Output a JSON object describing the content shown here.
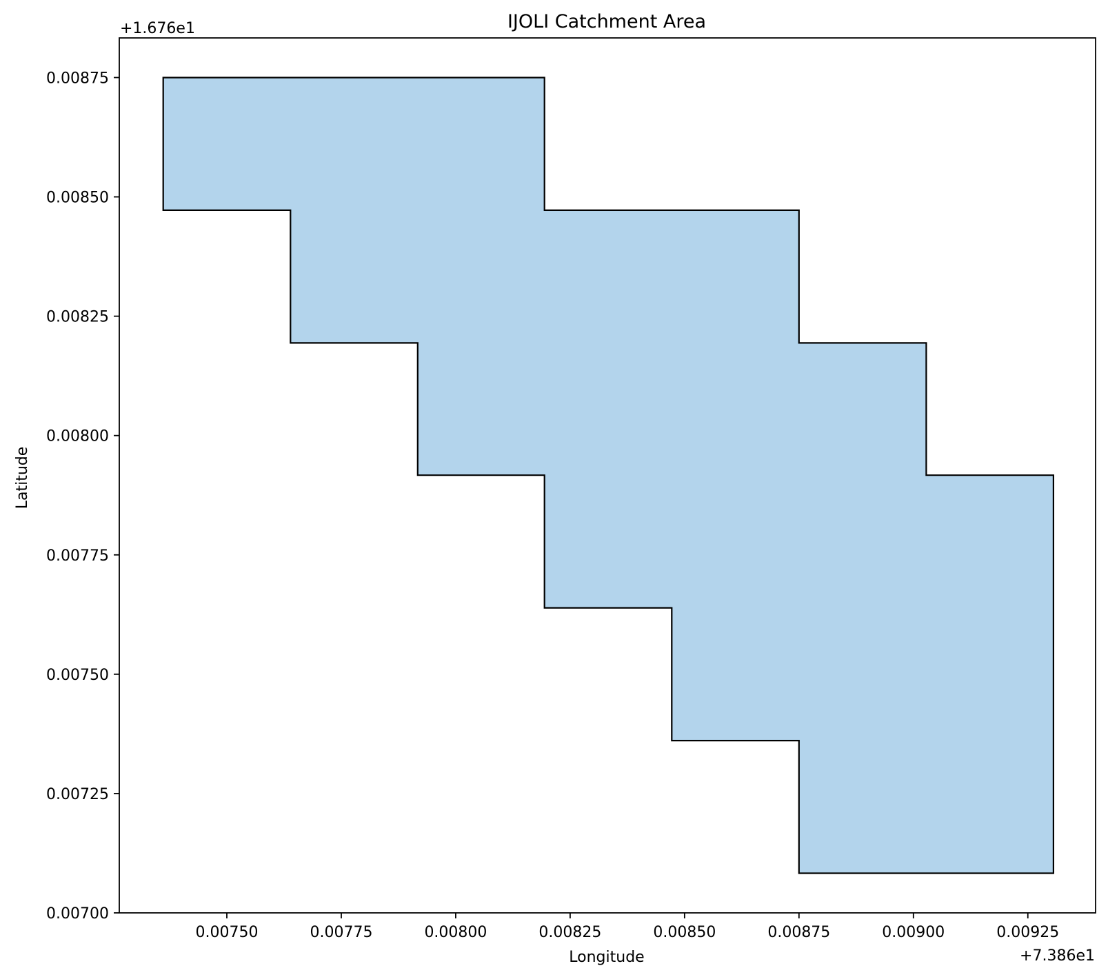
{
  "chart_data": {
    "type": "area",
    "title": "IJOLI Catchment Area",
    "xlabel": "Longitude",
    "ylabel": "Latitude",
    "x_offset_label": "+7.386e1",
    "y_offset_label": "+1.676e1",
    "x_offset": 73.86,
    "y_offset": 16.76,
    "xlim": [
      0.007265,
      0.009398
    ],
    "ylim": [
      0.007,
      0.008833
    ],
    "xticks": [
      {
        "value": 0.0075,
        "label": "0.00750"
      },
      {
        "value": 0.00775,
        "label": "0.00775"
      },
      {
        "value": 0.008,
        "label": "0.00800"
      },
      {
        "value": 0.00825,
        "label": "0.00825"
      },
      {
        "value": 0.0085,
        "label": "0.00850"
      },
      {
        "value": 0.00875,
        "label": "0.00875"
      },
      {
        "value": 0.009,
        "label": "0.00900"
      },
      {
        "value": 0.00925,
        "label": "0.00925"
      }
    ],
    "yticks": [
      {
        "value": 0.007,
        "label": "0.00700"
      },
      {
        "value": 0.00725,
        "label": "0.00725"
      },
      {
        "value": 0.0075,
        "label": "0.00750"
      },
      {
        "value": 0.00775,
        "label": "0.00775"
      },
      {
        "value": 0.008,
        "label": "0.00800"
      },
      {
        "value": 0.00825,
        "label": "0.00825"
      },
      {
        "value": 0.0085,
        "label": "0.00850"
      },
      {
        "value": 0.00875,
        "label": "0.00875"
      }
    ],
    "grid": false,
    "fill_color": "#b3d4ec",
    "edge_color": "#000000",
    "polygon": [
      [
        0.007361,
        0.00875
      ],
      [
        0.008194,
        0.00875
      ],
      [
        0.008194,
        0.008472
      ],
      [
        0.00875,
        0.008472
      ],
      [
        0.00875,
        0.008194
      ],
      [
        0.009028,
        0.008194
      ],
      [
        0.009028,
        0.007917
      ],
      [
        0.009306,
        0.007917
      ],
      [
        0.009306,
        0.007083
      ],
      [
        0.00875,
        0.007083
      ],
      [
        0.00875,
        0.007361
      ],
      [
        0.008472,
        0.007361
      ],
      [
        0.008472,
        0.007639
      ],
      [
        0.008194,
        0.007639
      ],
      [
        0.008194,
        0.007917
      ],
      [
        0.007917,
        0.007917
      ],
      [
        0.007917,
        0.008194
      ],
      [
        0.007639,
        0.008194
      ],
      [
        0.007639,
        0.008472
      ],
      [
        0.007361,
        0.008472
      ]
    ]
  }
}
